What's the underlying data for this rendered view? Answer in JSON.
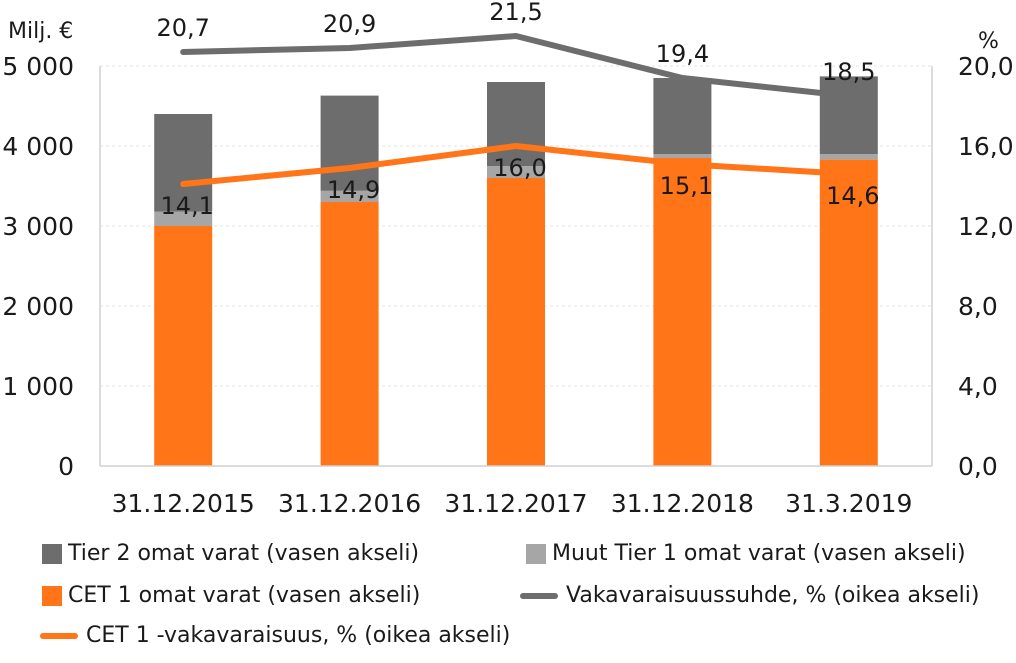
{
  "chart_data": {
    "type": "bar",
    "stacked": true,
    "categories": [
      "31.12.2015",
      "31.12.2016",
      "31.12.2017",
      "31.12.2018",
      "31.3.2019"
    ],
    "y_left": {
      "label": "Milj. €",
      "ylim": [
        0,
        5000
      ],
      "ticks": [
        "0",
        "1 000",
        "2 000",
        "3 000",
        "4 000",
        "5 000"
      ],
      "tick_values": [
        0,
        1000,
        2000,
        3000,
        4000,
        5000
      ]
    },
    "y_right": {
      "label": "%",
      "ylim": [
        0,
        20
      ],
      "ticks": [
        "0,0",
        "4,0",
        "8,0",
        "12,0",
        "16,0",
        "20,0"
      ],
      "tick_values": [
        0,
        4,
        8,
        12,
        16,
        20
      ]
    },
    "bar_series": [
      {
        "name": "CET 1 omat varat (vasen akseli)",
        "color": "#ff7518",
        "values": [
          3000,
          3300,
          3600,
          3850,
          3830
        ]
      },
      {
        "name": "Muut Tier 1 omat varat (vasen akseli)",
        "color": "#a6a6a6",
        "values": [
          180,
          140,
          150,
          50,
          70
        ]
      },
      {
        "name": "Tier 2 omat varat (vasen akseli)",
        "color": "#6d6d6d",
        "values": [
          1220,
          1190,
          1050,
          950,
          970
        ]
      }
    ],
    "line_series": [
      {
        "name": "Vakavaraisuussuhde, % (oikea akseli)",
        "color": "#6d6d6d",
        "values": [
          20.7,
          20.9,
          21.5,
          19.4,
          18.5
        ],
        "labels": [
          "20,7",
          "20,9",
          "21,5",
          "19,4",
          "18,5"
        ]
      },
      {
        "name": "CET 1 -vakavaraisuus, % (oikea akseli)",
        "color": "#ff7518",
        "values": [
          14.1,
          14.9,
          16.0,
          15.1,
          14.6
        ],
        "labels": [
          "14,1",
          "14,9",
          "16,0",
          "15,1",
          "14,6"
        ]
      }
    ],
    "grid": true,
    "legend_position": "bottom"
  }
}
